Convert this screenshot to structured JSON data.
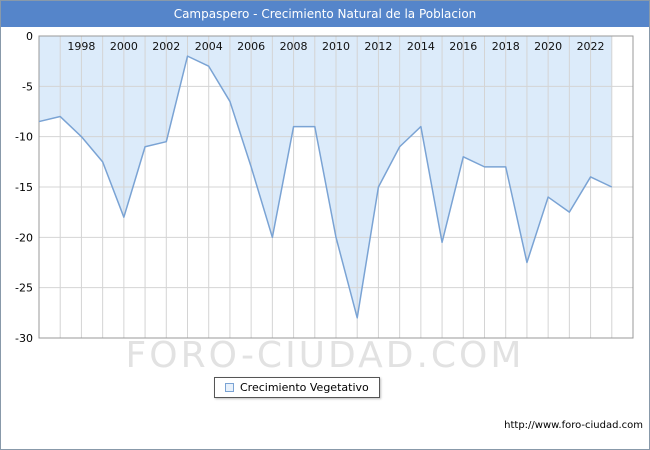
{
  "title": "Campaspero - Crecimiento Natural de la Poblacion",
  "legend": {
    "label": "Crecimiento Vegetativo"
  },
  "watermark": "FORO-CIUDAD.COM",
  "footer": {
    "url": "http://www.foro-ciudad.com"
  },
  "chart_data": {
    "type": "area",
    "title": "Campaspero - Crecimiento Natural de la Poblacion",
    "series_name": "Crecimiento Vegetativo",
    "x": [
      1996,
      1997,
      1998,
      1999,
      2000,
      2001,
      2002,
      2003,
      2004,
      2005,
      2006,
      2007,
      2008,
      2009,
      2010,
      2011,
      2012,
      2013,
      2014,
      2015,
      2016,
      2017,
      2018,
      2019,
      2020,
      2021,
      2022,
      2023
    ],
    "values": [
      -8.5,
      -8,
      -10,
      -12.5,
      -18,
      -11,
      -10.5,
      -2,
      -3,
      -6.5,
      -13,
      -20,
      -9,
      -9,
      -20,
      -28,
      -15,
      -11,
      -9,
      -20.5,
      -12,
      -13,
      -13,
      -22.5,
      -16,
      -17.5,
      -14,
      -15
    ],
    "xlim": [
      1996,
      2024
    ],
    "ylim": [
      -30,
      0
    ],
    "xticks": [
      1998,
      2000,
      2002,
      2004,
      2006,
      2008,
      2010,
      2012,
      2014,
      2016,
      2018,
      2020,
      2022
    ],
    "yticks": [
      0,
      -5,
      -10,
      -15,
      -20,
      -25,
      -30
    ],
    "grid": true,
    "legend_position": "bottom",
    "line_color": "#7aa3d4",
    "fill_color": "#dcebfa",
    "grid_color": "#d4d4d4",
    "border_color": "#999999",
    "title_bar_color": "#5585ca"
  }
}
